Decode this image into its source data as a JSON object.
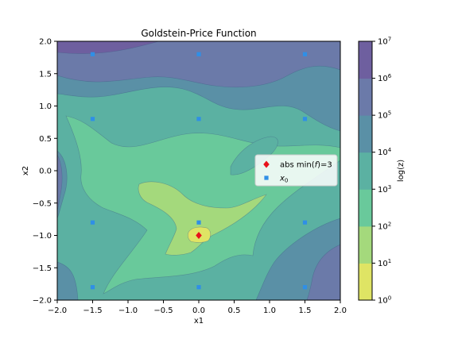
{
  "chart_data": {
    "type": "contour",
    "title": "Goldstein-Price Function",
    "xlabel": "x1",
    "ylabel": "x2",
    "xlim": [
      -2.0,
      2.0
    ],
    "ylim": [
      -2.0,
      2.0
    ],
    "x_ticks": [
      "−2.0",
      "−1.5",
      "−1.0",
      "−0.5",
      "0.0",
      "0.5",
      "1.0",
      "1.5",
      "2.0"
    ],
    "y_ticks": [
      "−2.0",
      "−1.5",
      "−1.0",
      "−0.5",
      "0.0",
      "0.5",
      "1.0",
      "1.5",
      "2.0"
    ],
    "colorbar": {
      "label": "log(z)",
      "scale": "log",
      "levels": [
        1,
        10,
        100,
        1000,
        10000,
        100000,
        1000000,
        10000000
      ],
      "tick_labels": [
        {
          "base": "10",
          "exp": "0"
        },
        {
          "base": "10",
          "exp": "1"
        },
        {
          "base": "10",
          "exp": "2"
        },
        {
          "base": "10",
          "exp": "3"
        },
        {
          "base": "10",
          "exp": "4"
        },
        {
          "base": "10",
          "exp": "5"
        },
        {
          "base": "10",
          "exp": "6"
        },
        {
          "base": "10",
          "exp": "7"
        }
      ],
      "colors": [
        "#dfe464",
        "#a4d97c",
        "#69c99b",
        "#5bb1a2",
        "#5a90a6",
        "#6b7aa9",
        "#6e5f9f"
      ]
    },
    "series": [
      {
        "name_parts": [
          "abs min(",
          "f",
          ")=3"
        ],
        "marker": "diamond",
        "color": "#e8121b",
        "points": [
          [
            0,
            -1
          ]
        ]
      },
      {
        "name_parts": [
          "x",
          "0"
        ],
        "marker": "square",
        "color": "#2f8fe6",
        "points": [
          [
            -1.5,
            1.8
          ],
          [
            0,
            1.8
          ],
          [
            1.5,
            1.8
          ],
          [
            -1.5,
            0.8
          ],
          [
            0,
            0.8
          ],
          [
            1.5,
            0.8
          ],
          [
            -1.5,
            -0.8
          ],
          [
            0,
            -0.8
          ],
          [
            1.5,
            -0.8
          ],
          [
            -1.5,
            -1.8
          ],
          [
            0,
            -1.8
          ],
          [
            1.5,
            -1.8
          ]
        ]
      }
    ],
    "legend_position": "right"
  }
}
